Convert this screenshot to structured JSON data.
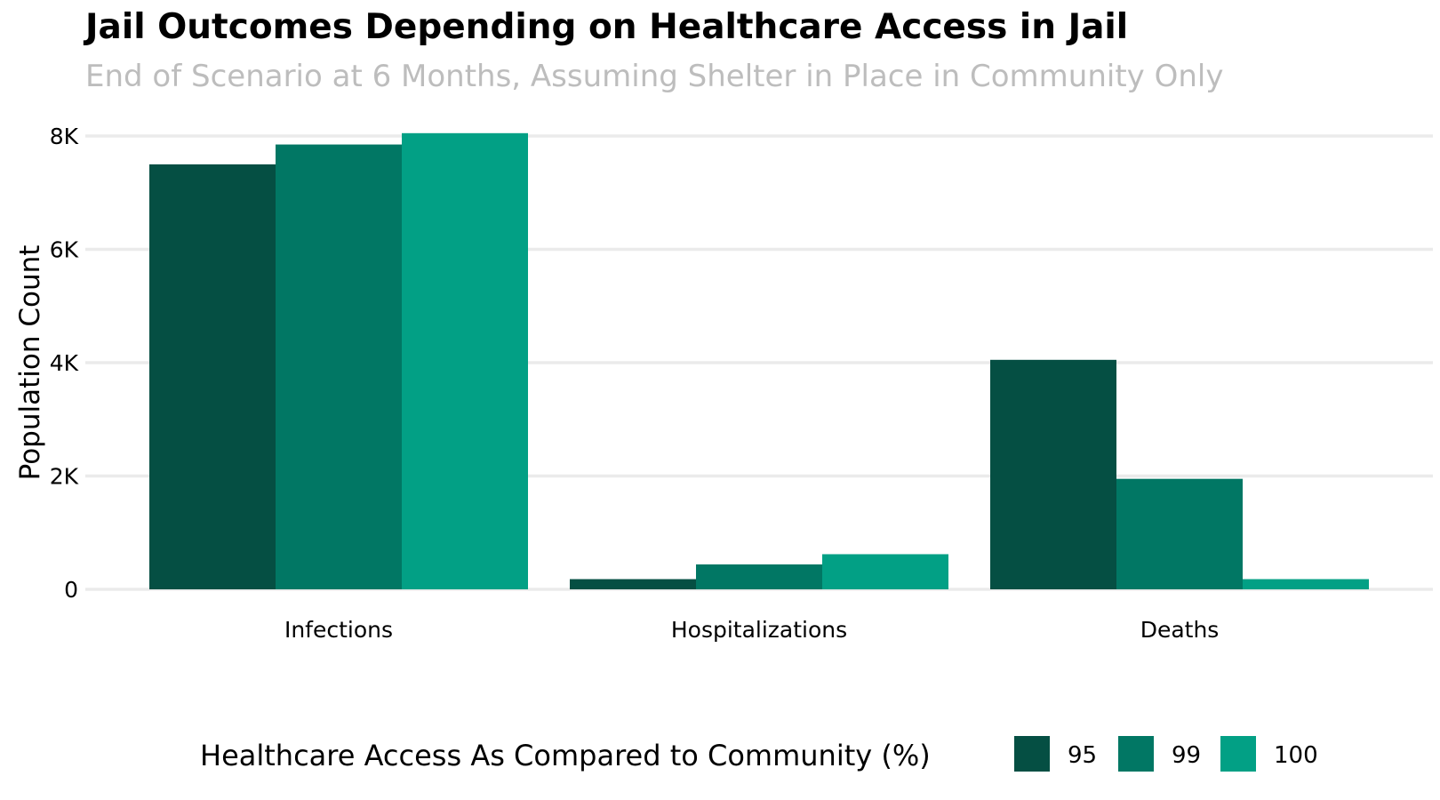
{
  "chart_data": {
    "type": "bar",
    "title": "Jail Outcomes Depending on Healthcare Access in Jail",
    "subtitle": "End of Scenario at 6 Months, Assuming Shelter in Place in Community Only",
    "xlabel": "",
    "ylabel": "Population Count",
    "categories": [
      "Infections",
      "Hospitalizations",
      "Deaths"
    ],
    "series": [
      {
        "name": "95",
        "color": "#054f43",
        "values": [
          7500,
          180,
          4050
        ]
      },
      {
        "name": "99",
        "color": "#017764",
        "values": [
          7850,
          440,
          1950
        ]
      },
      {
        "name": "100",
        "color": "#02a085",
        "values": [
          8050,
          620,
          180
        ]
      }
    ],
    "ylim": [
      0,
      8200
    ],
    "yticks": [
      0,
      2000,
      4000,
      6000,
      8000
    ],
    "ytick_labels": [
      "0",
      "2K",
      "4K",
      "6K",
      "8K"
    ],
    "grid": true,
    "legend": {
      "title": "Healthcare Access As Compared to Community (%)",
      "position": "bottom"
    }
  }
}
